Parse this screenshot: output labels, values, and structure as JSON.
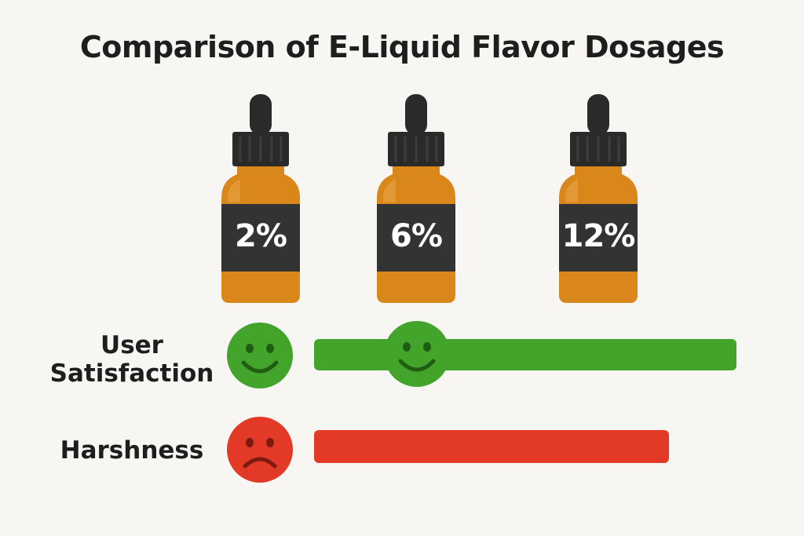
{
  "title": "Comparison of E-Liquid Flavor Dosages",
  "bottles": [
    {
      "label": "2%"
    },
    {
      "label": "6%"
    },
    {
      "label": "12%"
    }
  ],
  "metrics": [
    {
      "label_line1": "User",
      "label_line2": "Satisfaction",
      "icon": "smiley-face-icon",
      "color": "#43a42c"
    },
    {
      "label_line1": "Harshness",
      "label_line2": "",
      "icon": "frowny-face-icon",
      "color": "#e23a26"
    }
  ],
  "colors": {
    "background": "#f8f6f3",
    "bottle_amber": "#d9861a",
    "bottle_cap": "#2a2a2a",
    "satisfaction_green": "#43a42c",
    "harshness_red": "#e23a26"
  }
}
